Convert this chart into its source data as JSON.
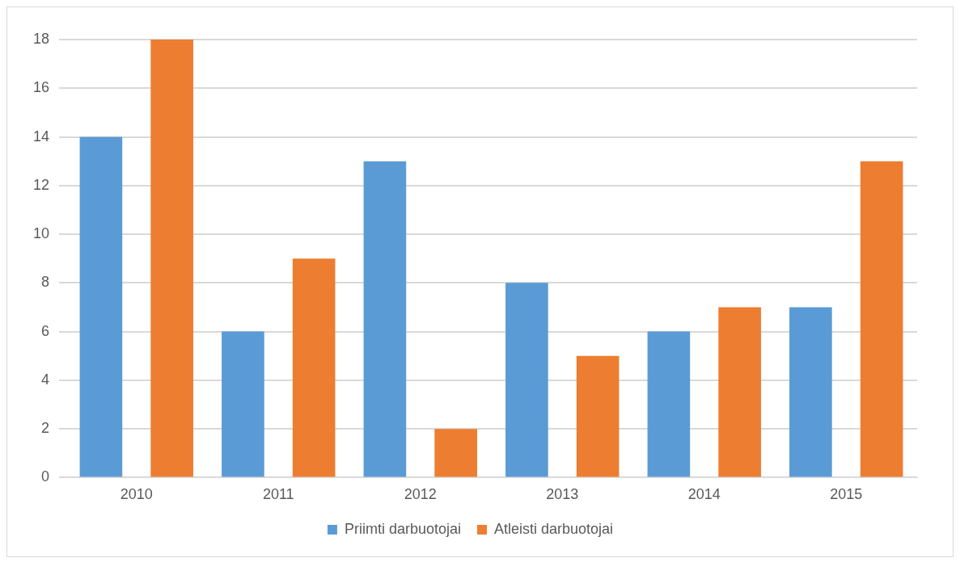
{
  "chart_data": {
    "type": "bar",
    "categories": [
      "2010",
      "2011",
      "2012",
      "2013",
      "2014",
      "2015"
    ],
    "series": [
      {
        "name": "Priimti darbuotojai",
        "color": "#5b9bd5",
        "values": [
          14,
          6,
          13,
          8,
          6,
          7
        ]
      },
      {
        "name": "Atleisti darbuotojai",
        "color": "#ed7d31",
        "values": [
          18,
          9,
          2,
          5,
          7,
          13
        ]
      }
    ],
    "ylim": [
      0,
      18
    ],
    "yticks": [
      0,
      2,
      4,
      6,
      8,
      10,
      12,
      14,
      16,
      18
    ],
    "grid": "y",
    "legend": "bottom"
  }
}
